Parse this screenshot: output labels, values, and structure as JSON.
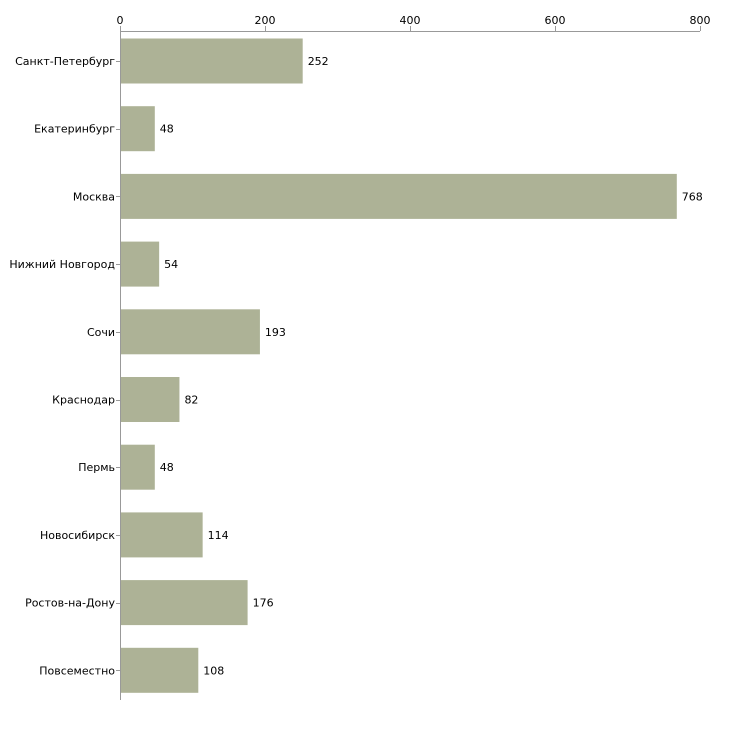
{
  "chart_data": {
    "type": "bar",
    "orientation": "horizontal",
    "title": "",
    "xlabel": "",
    "ylabel": "",
    "xlim": [
      0,
      800
    ],
    "ticks": [
      0,
      200,
      400,
      600,
      800
    ],
    "tick_labels": [
      "0",
      "200",
      "400",
      "600",
      "800"
    ],
    "grid": false,
    "axis_position": "top",
    "categories": [
      "Санкт-Петербург",
      "Екатеринбург",
      "Москва",
      "Нижний Новгород",
      "Сочи",
      "Краснодар",
      "Пермь",
      "Новосибирск",
      "Ростов-на-Дону",
      "Повсеместно"
    ],
    "values": [
      252,
      48,
      768,
      54,
      193,
      82,
      48,
      114,
      176,
      108
    ],
    "value_labels": [
      "252",
      "48",
      "768",
      "54",
      "193",
      "82",
      "48",
      "114",
      "176",
      "108"
    ],
    "bar_color": "#adb296"
  },
  "colors": {
    "axis": "#999999",
    "text": "#000000",
    "background": "#ffffff"
  }
}
